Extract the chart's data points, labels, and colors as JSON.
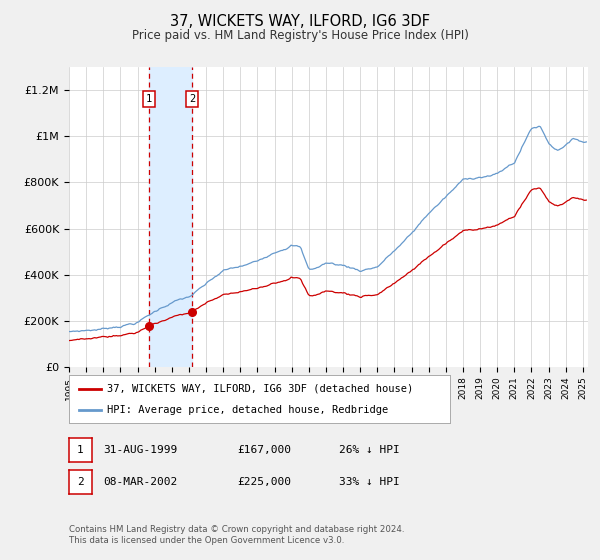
{
  "title": "37, WICKETS WAY, ILFORD, IG6 3DF",
  "subtitle": "Price paid vs. HM Land Registry's House Price Index (HPI)",
  "legend_line1": "37, WICKETS WAY, ILFORD, IG6 3DF (detached house)",
  "legend_line2": "HPI: Average price, detached house, Redbridge",
  "transaction1_date": "31-AUG-1999",
  "transaction1_price": 167000,
  "transaction1_hpi": "26% ↓ HPI",
  "transaction2_date": "08-MAR-2002",
  "transaction2_price": 225000,
  "transaction2_hpi": "33% ↓ HPI",
  "footnote": "Contains HM Land Registry data © Crown copyright and database right 2024.\nThis data is licensed under the Open Government Licence v3.0.",
  "hpi_color": "#6699cc",
  "price_color": "#cc0000",
  "bg_color": "#f0f0f0",
  "plot_bg": "#ffffff",
  "highlight_color": "#ddeeff",
  "grid_color": "#cccccc",
  "ylim_max": 1300000,
  "transaction1_year": 1999.667,
  "transaction2_year": 2002.18
}
